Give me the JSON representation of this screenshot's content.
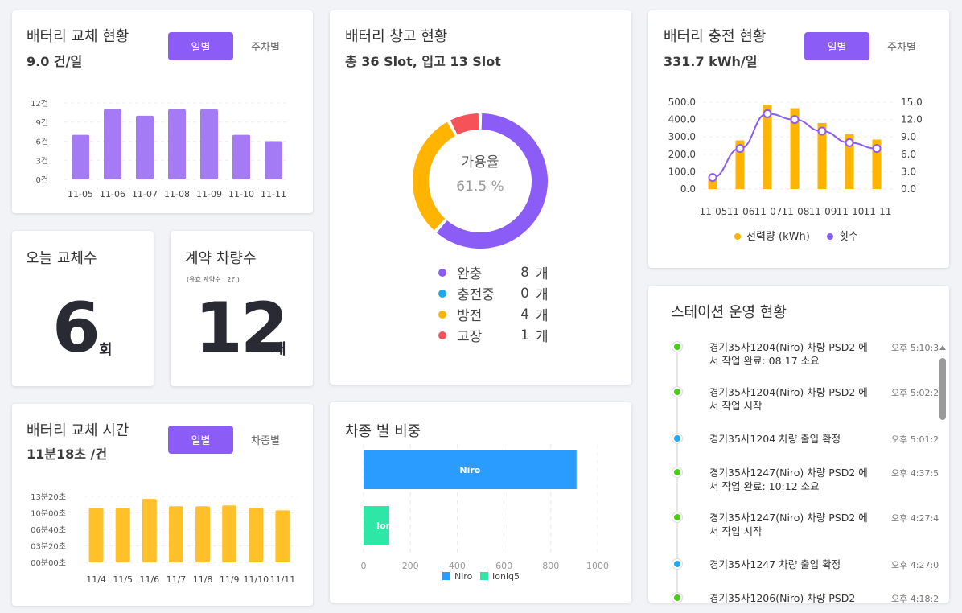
{
  "colors": {
    "purple": "#8b5cf6",
    "bar_purple": "#a57bf5",
    "orange": "#ffb400",
    "yellow": "#ffc02a",
    "blue": "#2b9cff",
    "teal": "#2ee6a6",
    "red": "#f5525a",
    "sky": "#1eaaf1",
    "green": "#4ccc1a"
  },
  "swap": {
    "title": "배터리 교체 현황",
    "value": "9.0 건/일",
    "btn_daily": "일별",
    "btn_station": "주차별",
    "chart_data": {
      "type": "bar",
      "categories": [
        "11-05",
        "11-06",
        "11-07",
        "11-08",
        "11-09",
        "11-10",
        "11-11"
      ],
      "values": [
        7,
        11,
        10,
        11,
        11,
        7,
        6
      ],
      "y_ticks": [
        "0건",
        "3건",
        "6건",
        "9건",
        "12건"
      ],
      "ylim": [
        0,
        12
      ]
    }
  },
  "today": {
    "title": "오늘 교체수",
    "value": "6",
    "unit": "회"
  },
  "contract": {
    "title": "계약 차량수",
    "note": "(유효 계약수 : 2건)",
    "value": "12",
    "unit": "대"
  },
  "swap_time": {
    "title": "배터리 교체 시간",
    "value": "11분18초 /건",
    "btn_daily": "일별",
    "btn_model": "차종별",
    "chart_data": {
      "type": "bar",
      "categories": [
        "11/4",
        "11/5",
        "11/6",
        "11/7",
        "11/8",
        "11/9",
        "11/10",
        "11/11"
      ],
      "values_sec": [
        660,
        660,
        770,
        680,
        680,
        690,
        660,
        630
      ],
      "y_ticks": [
        "00분00초",
        "03분20초",
        "06분40초",
        "10분00초",
        "13분20초"
      ],
      "ylim": [
        0,
        800
      ]
    }
  },
  "storage": {
    "title": "배터리 창고 현황",
    "subtitle": "총 36 Slot, 입고 13 Slot",
    "center_label": "가용율",
    "center_value": "61.5 %",
    "chart_data": {
      "type": "pie",
      "items": [
        {
          "label": "완충",
          "value": 8,
          "unit": "개",
          "color": "#8b5cf6"
        },
        {
          "label": "충전중",
          "value": 0,
          "unit": "개",
          "color": "#1eaaf1"
        },
        {
          "label": "방전",
          "value": 4,
          "unit": "개",
          "color": "#ffb400"
        },
        {
          "label": "고장",
          "value": 1,
          "unit": "개",
          "color": "#f5525a"
        }
      ]
    }
  },
  "model": {
    "title": "차종 별 비중",
    "chart_data": {
      "type": "bar",
      "orientation": "horizontal",
      "categories": [
        "Niro",
        "Ioniq5"
      ],
      "values": [
        910,
        110
      ],
      "bar_labels": [
        "Niro",
        "Ioni"
      ],
      "x_ticks": [
        "0",
        "200",
        "400",
        "600",
        "800",
        "1000"
      ],
      "xlim": [
        0,
        1000
      ],
      "legend": [
        "Niro",
        "Ioniq5"
      ]
    }
  },
  "charge": {
    "title": "배터리 충전 현황",
    "value": "331.7 kWh/일",
    "btn_daily": "일별",
    "btn_station": "주차별",
    "chart_data": {
      "type": "bar+line",
      "categories": [
        "11-05",
        "11-06",
        "11-07",
        "11-08",
        "11-09",
        "11-10",
        "11-11"
      ],
      "series": [
        {
          "name": "전력량 (kWh)",
          "type": "bar",
          "axis": "left",
          "values": [
            60,
            280,
            485,
            465,
            380,
            315,
            285
          ]
        },
        {
          "name": "횟수",
          "type": "line",
          "axis": "right",
          "values": [
            2,
            7,
            13,
            12,
            10,
            8,
            7
          ]
        }
      ],
      "y_left_ticks": [
        "0.0",
        "100.0",
        "200.0",
        "300.0",
        "400.0",
        "500.0"
      ],
      "y_right_ticks": [
        "0.0",
        "3.0",
        "6.0",
        "9.0",
        "12.0",
        "15.0"
      ],
      "ylim_left": [
        0,
        500
      ],
      "ylim_right": [
        0,
        15
      ],
      "legend_placement": "bottom"
    }
  },
  "station": {
    "title": "스테이션 운영 현황",
    "items": [
      {
        "text": "경기35사1204(Niro) 차량 PSD2 에서 작업 완료: 08:17 소요",
        "time": "오후 5:10:3",
        "color": "#4ccc1a"
      },
      {
        "text": "경기35사1204(Niro) 차량 PSD2 에서 작업 시작",
        "time": "오후 5:02:2",
        "color": "#4ccc1a"
      },
      {
        "text": "경기35사1204 차량 출입 확정",
        "time": "오후 5:01:2",
        "color": "#1eaaf1"
      },
      {
        "text": "경기35사1247(Niro) 차량 PSD2 에서 작업 완료: 10:12 소요",
        "time": "오후 4:37:5",
        "color": "#4ccc1a"
      },
      {
        "text": "경기35사1247(Niro) 차량 PSD2 에서 작업 시작",
        "time": "오후 4:27:4",
        "color": "#4ccc1a"
      },
      {
        "text": "경기35사1247 차량 출입 확정",
        "time": "오후 4:27:0",
        "color": "#1eaaf1"
      },
      {
        "text": "경기35사1206(Niro) 차량 PSD2",
        "time": "오후 4:18:2",
        "color": "#4ccc1a"
      }
    ]
  }
}
